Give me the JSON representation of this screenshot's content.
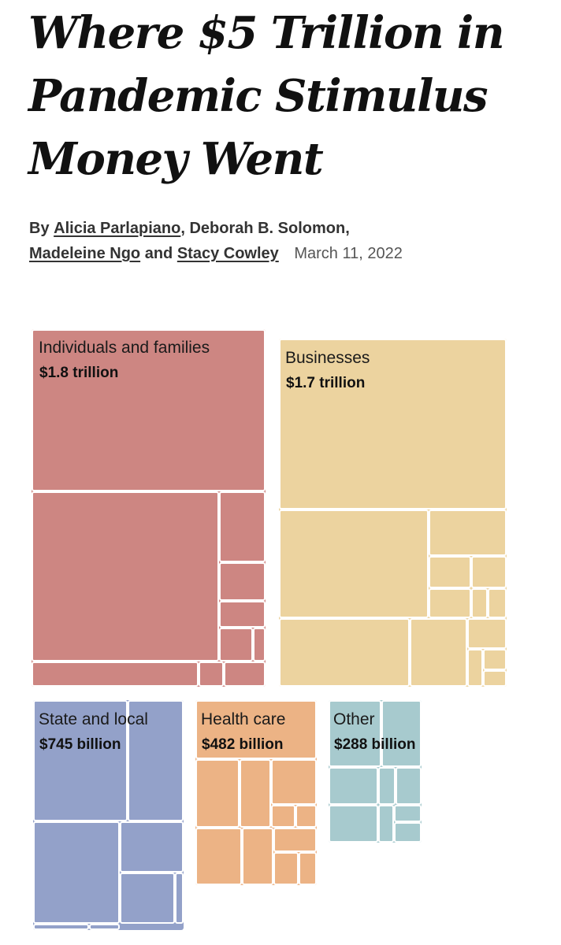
{
  "headline": {
    "line1": "Where $5 Trillion in",
    "line2": "Pandemic Stimulus",
    "line3": "Money Went"
  },
  "byline": {
    "prefix": "By",
    "author1": "Alicia Parlapiano",
    "author2": "Deborah B. Solomon,",
    "author3": "Madeleine Ngo",
    "conjunction": "and",
    "author4": "Stacy Cowley",
    "date": "March 11, 2022"
  },
  "chart_data": {
    "type": "treemap",
    "title": "Where $5 Trillion in Pandemic Stimulus Money Went",
    "total": "$5 trillion",
    "categories": [
      {
        "name": "Individuals and families",
        "value_label": "$1.8 trillion",
        "value": 1800,
        "color": "#cd8682"
      },
      {
        "name": "Businesses",
        "value_label": "$1.7 trillion",
        "value": 1700,
        "color": "#ecd39f"
      },
      {
        "name": "State and local",
        "value_label": "$745 billion",
        "value": 745,
        "color": "#93a1c9"
      },
      {
        "name": "Health care",
        "value_label": "$482 billion",
        "value": 482,
        "color": "#ecb385"
      },
      {
        "name": "Other",
        "value_label": "$288 billion",
        "value": 288,
        "color": "#a7cace"
      }
    ],
    "units": "billions of dollars"
  }
}
